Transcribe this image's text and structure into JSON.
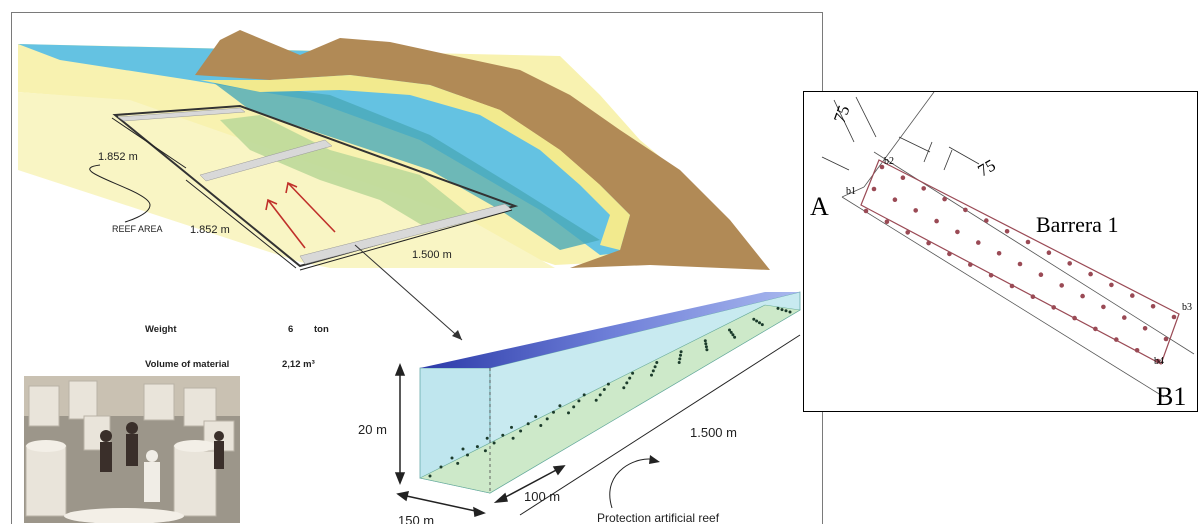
{
  "main_diagram": {
    "reef_area_label": "REEF AREA",
    "dim_width_1": "1.852 m",
    "dim_width_2": "1.852 m",
    "dim_length": "1.500 m"
  },
  "specs": {
    "weight_label": "Weight",
    "weight_value": "6",
    "weight_unit": "ton",
    "volume_label": "Volume of material",
    "volume_value": "2,12 m³"
  },
  "block_diagram": {
    "height_label": "20 m",
    "length_label": "1.500 m",
    "width_label": "150 m",
    "spacing_label": "100 m",
    "caption": "Protection artificial reef"
  },
  "plan_inset": {
    "spacing_1": "75",
    "spacing_2": "75",
    "point_a": "A",
    "point_b": "B1",
    "barrier_label": "Barrera 1",
    "corner_b1": "b1",
    "corner_b2": "b2",
    "corner_b3": "b3",
    "corner_b4": "b4"
  },
  "colors": {
    "sea": "#6cc4e4",
    "shore_sand": "#f6ef9a",
    "land": "#b48b58",
    "seabed_green": "#c9dfa6",
    "water_box": "#bfe6ee",
    "arrow_red": "#c0302a",
    "dots": "#9a4a55"
  }
}
